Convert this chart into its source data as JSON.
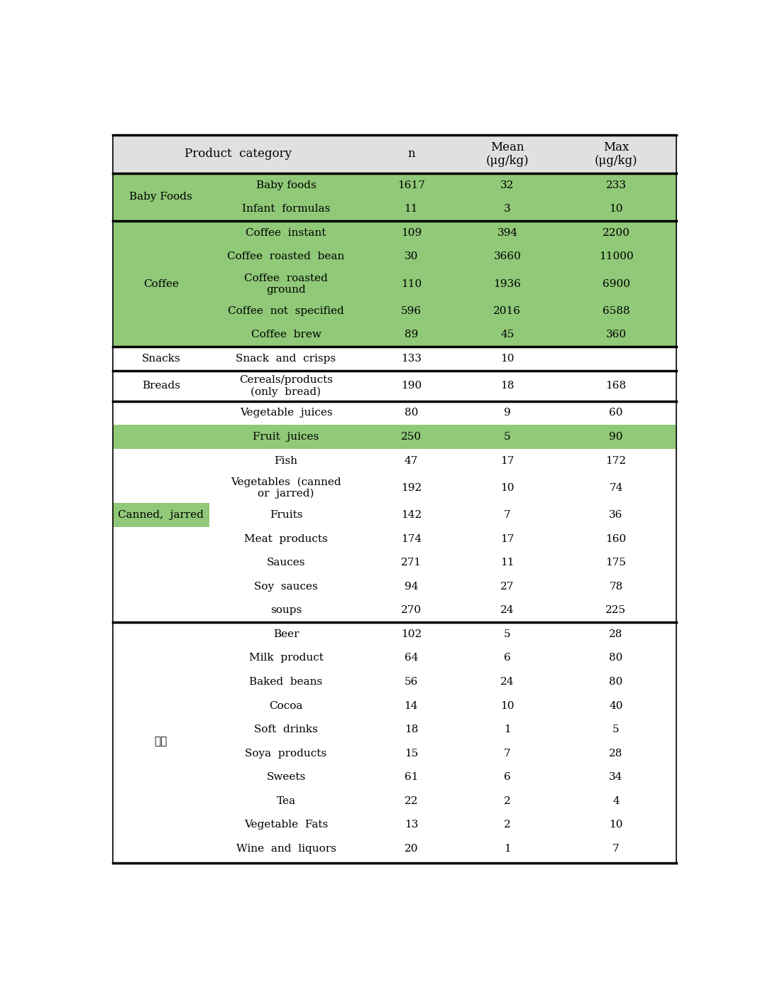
{
  "rows": [
    {
      "category": "Baby Foods",
      "product": "Baby foods",
      "n": "1617",
      "mean": "32",
      "max": "233",
      "full_row_green": true,
      "cat_cell_green": true,
      "show_cat": false
    },
    {
      "category": "Baby Foods",
      "product": "Infant  formulas",
      "n": "11",
      "mean": "3",
      "max": "10",
      "full_row_green": true,
      "cat_cell_green": true,
      "show_cat": false
    },
    {
      "category": "Coffee",
      "product": "Coffee  instant",
      "n": "109",
      "mean": "394",
      "max": "2200",
      "full_row_green": true,
      "cat_cell_green": true,
      "show_cat": false
    },
    {
      "category": "Coffee",
      "product": "Coffee  roasted  bean",
      "n": "30",
      "mean": "3660",
      "max": "11000",
      "full_row_green": true,
      "cat_cell_green": true,
      "show_cat": false
    },
    {
      "category": "Coffee",
      "product": "Coffee  roasted\nground",
      "n": "110",
      "mean": "1936",
      "max": "6900",
      "full_row_green": true,
      "cat_cell_green": true,
      "show_cat": false
    },
    {
      "category": "Coffee",
      "product": "Coffee  not  specified",
      "n": "596",
      "mean": "2016",
      "max": "6588",
      "full_row_green": true,
      "cat_cell_green": true,
      "show_cat": false
    },
    {
      "category": "Coffee",
      "product": "Coffee  brew",
      "n": "89",
      "mean": "45",
      "max": "360",
      "full_row_green": true,
      "cat_cell_green": true,
      "show_cat": false
    },
    {
      "category": "Snacks",
      "product": "Snack  and  crisps",
      "n": "133",
      "mean": "10",
      "max": "",
      "full_row_green": false,
      "cat_cell_green": false,
      "show_cat": false
    },
    {
      "category": "Breads",
      "product": "Cereals/products\n(only  bread)",
      "n": "190",
      "mean": "18",
      "max": "168",
      "full_row_green": false,
      "cat_cell_green": false,
      "show_cat": false
    },
    {
      "category": "Canned, jarred",
      "product": "Vegetable  juices",
      "n": "80",
      "mean": "9",
      "max": "60",
      "full_row_green": false,
      "cat_cell_green": false,
      "show_cat": false
    },
    {
      "category": "Canned, jarred",
      "product": "Fruit  juices",
      "n": "250",
      "mean": "5",
      "max": "90",
      "full_row_green": true,
      "cat_cell_green": false,
      "show_cat": false
    },
    {
      "category": "Canned, jarred",
      "product": "Fish",
      "n": "47",
      "mean": "17",
      "max": "172",
      "full_row_green": false,
      "cat_cell_green": false,
      "show_cat": false
    },
    {
      "category": "Canned, jarred",
      "product": "Vegetables  (canned\nor  jarred)",
      "n": "192",
      "mean": "10",
      "max": "74",
      "full_row_green": false,
      "cat_cell_green": false,
      "show_cat": false
    },
    {
      "category": "Canned, jarred",
      "product": "Fruits",
      "n": "142",
      "mean": "7",
      "max": "36",
      "full_row_green": false,
      "cat_cell_green": true,
      "show_cat": true
    },
    {
      "category": "Canned, jarred",
      "product": "Meat  products",
      "n": "174",
      "mean": "17",
      "max": "160",
      "full_row_green": false,
      "cat_cell_green": false,
      "show_cat": false
    },
    {
      "category": "Canned, jarred",
      "product": "Sauces",
      "n": "271",
      "mean": "11",
      "max": "175",
      "full_row_green": false,
      "cat_cell_green": false,
      "show_cat": false
    },
    {
      "category": "Canned, jarred",
      "product": "Soy  sauces",
      "n": "94",
      "mean": "27",
      "max": "78",
      "full_row_green": false,
      "cat_cell_green": false,
      "show_cat": false
    },
    {
      "category": "Canned, jarred",
      "product": "soups",
      "n": "270",
      "mean": "24",
      "max": "225",
      "full_row_green": false,
      "cat_cell_green": false,
      "show_cat": false
    },
    {
      "category": "기타",
      "product": "Beer",
      "n": "102",
      "mean": "5",
      "max": "28",
      "full_row_green": false,
      "cat_cell_green": false,
      "show_cat": false
    },
    {
      "category": "기타",
      "product": "Milk  product",
      "n": "64",
      "mean": "6",
      "max": "80",
      "full_row_green": false,
      "cat_cell_green": false,
      "show_cat": false
    },
    {
      "category": "기타",
      "product": "Baked  beans",
      "n": "56",
      "mean": "24",
      "max": "80",
      "full_row_green": false,
      "cat_cell_green": false,
      "show_cat": false
    },
    {
      "category": "기타",
      "product": "Cocoa",
      "n": "14",
      "mean": "10",
      "max": "40",
      "full_row_green": false,
      "cat_cell_green": false,
      "show_cat": false
    },
    {
      "category": "기타",
      "product": "Soft  drinks",
      "n": "18",
      "mean": "1",
      "max": "5",
      "full_row_green": false,
      "cat_cell_green": false,
      "show_cat": false
    },
    {
      "category": "기타",
      "product": "Soya  products",
      "n": "15",
      "mean": "7",
      "max": "28",
      "full_row_green": false,
      "cat_cell_green": false,
      "show_cat": false
    },
    {
      "category": "기타",
      "product": "Sweets",
      "n": "61",
      "mean": "6",
      "max": "34",
      "full_row_green": false,
      "cat_cell_green": false,
      "show_cat": false
    },
    {
      "category": "기타",
      "product": "Tea",
      "n": "22",
      "mean": "2",
      "max": "4",
      "full_row_green": false,
      "cat_cell_green": false,
      "show_cat": false
    },
    {
      "category": "기타",
      "product": "Vegetable  Fats",
      "n": "13",
      "mean": "2",
      "max": "10",
      "full_row_green": false,
      "cat_cell_green": false,
      "show_cat": false
    },
    {
      "category": "기타",
      "product": "Wine  and  liquors",
      "n": "20",
      "mean": "1",
      "max": "7",
      "full_row_green": false,
      "cat_cell_green": false,
      "show_cat": false
    }
  ],
  "green": "#90c978",
  "header_bg": "#e0e0e0",
  "white": "#ffffff",
  "thick_borders_after_rows": [
    1,
    6,
    7,
    8,
    17
  ],
  "cat_groups": {
    "Baby Foods": [
      0,
      1
    ],
    "Coffee": [
      2,
      3,
      4,
      5,
      6
    ],
    "Snacks": [
      7
    ],
    "Breads": [
      8
    ],
    "Canned, jarred": [
      9,
      10,
      11,
      12,
      13,
      14,
      15,
      16,
      17
    ],
    "기타": [
      18,
      19,
      20,
      21,
      22,
      23,
      24,
      25,
      26,
      27
    ]
  },
  "cat_label_row": {
    "Baby Foods": 0,
    "Coffee": 4,
    "Snacks": 7,
    "Breads": 8,
    "Canned, jarred": 13,
    "기타": 22
  },
  "font_size": 11.5
}
